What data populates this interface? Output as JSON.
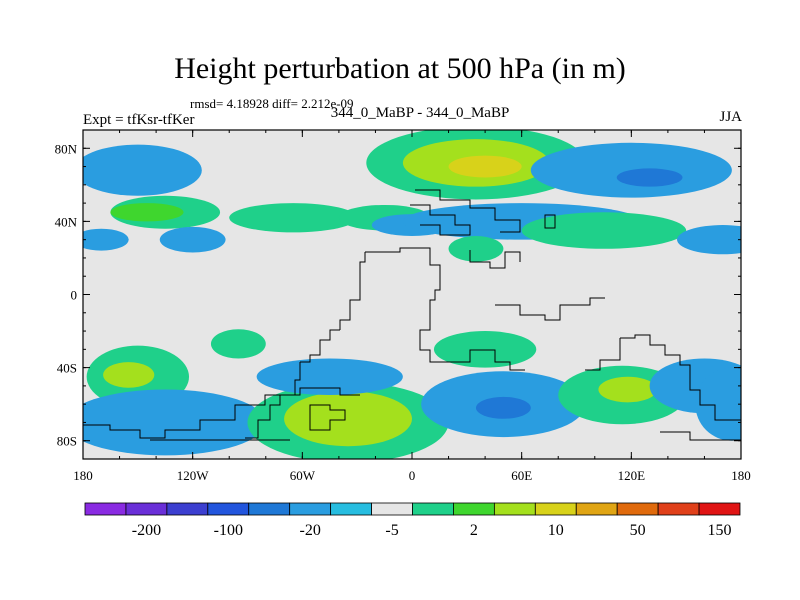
{
  "title": "Height perturbation at 500 hPa (in m)",
  "stats": "rmsd= 4.18928 diff= 2.212e-09",
  "left_label": "Expt = tfKsr-tfKer",
  "center_label": "344_0_MaBP - 344_0_MaBP",
  "right_label": "JJA",
  "map": {
    "lon_range": [
      -180,
      180
    ],
    "lat_range": [
      -90,
      90
    ],
    "lat_ticks": [
      {
        "value": 80,
        "label": "80N"
      },
      {
        "value": 40,
        "label": "40N"
      },
      {
        "value": 0,
        "label": "0"
      },
      {
        "value": -40,
        "label": "40S"
      },
      {
        "value": -80,
        "label": "80S"
      }
    ],
    "lon_ticks": [
      {
        "value": -180,
        "label": "180"
      },
      {
        "value": -120,
        "label": "120W"
      },
      {
        "value": -60,
        "label": "60W"
      },
      {
        "value": 0,
        "label": "0"
      },
      {
        "value": 60,
        "label": "60E"
      },
      {
        "value": 120,
        "label": "120E"
      },
      {
        "value": 180,
        "label": "180"
      }
    ]
  },
  "colorbar": {
    "colors": [
      "#8a2be2",
      "#6a2fd8",
      "#3c3fd0",
      "#2255dd",
      "#1f78d6",
      "#2a9de0",
      "#27bde0",
      "#e6e6e6",
      "#1fd08a",
      "#3fd62e",
      "#a4e01d",
      "#d8d21a",
      "#e0a514",
      "#e06a0c",
      "#e0401a",
      "#e01414"
    ],
    "labels": [
      "-200",
      "-100",
      "-20",
      "-5",
      "2",
      "10",
      "50",
      "150"
    ]
  },
  "field": {
    "blobs": [
      {
        "lon": -150,
        "lat": 68,
        "rx": 35,
        "ry": 14,
        "v": -5
      },
      {
        "lon": -135,
        "lat": 45,
        "rx": 30,
        "ry": 9,
        "v": 5
      },
      {
        "lon": -145,
        "lat": 45,
        "rx": 20,
        "ry": 5,
        "v": 10
      },
      {
        "lon": -120,
        "lat": 30,
        "rx": 18,
        "ry": 7,
        "v": -5
      },
      {
        "lon": -65,
        "lat": 42,
        "rx": 35,
        "ry": 8,
        "v": 5
      },
      {
        "lon": -15,
        "lat": 42,
        "rx": 25,
        "ry": 7,
        "v": 5
      },
      {
        "lon": 0,
        "lat": 38,
        "rx": 22,
        "ry": 6,
        "v": -5
      },
      {
        "lon": 35,
        "lat": 72,
        "rx": 60,
        "ry": 20,
        "v": 5
      },
      {
        "lon": 35,
        "lat": 72,
        "rx": 40,
        "ry": 13,
        "v": 20
      },
      {
        "lon": 40,
        "lat": 70,
        "rx": 20,
        "ry": 6,
        "v": 50
      },
      {
        "lon": 120,
        "lat": 68,
        "rx": 55,
        "ry": 15,
        "v": -5
      },
      {
        "lon": 130,
        "lat": 64,
        "rx": 18,
        "ry": 5,
        "v": -20
      },
      {
        "lon": 60,
        "lat": 40,
        "rx": 65,
        "ry": 10,
        "v": -5
      },
      {
        "lon": 105,
        "lat": 35,
        "rx": 45,
        "ry": 10,
        "v": 5
      },
      {
        "lon": 35,
        "lat": 25,
        "rx": 15,
        "ry": 7,
        "v": 5
      },
      {
        "lon": 170,
        "lat": 30,
        "rx": 25,
        "ry": 8,
        "v": -5
      },
      {
        "lon": -170,
        "lat": 30,
        "rx": 15,
        "ry": 6,
        "v": -5
      },
      {
        "lon": -95,
        "lat": -27,
        "rx": 15,
        "ry": 8,
        "v": 5
      },
      {
        "lon": -150,
        "lat": -45,
        "rx": 28,
        "ry": 17,
        "v": 5
      },
      {
        "lon": -155,
        "lat": -44,
        "rx": 14,
        "ry": 7,
        "v": 20
      },
      {
        "lon": -135,
        "lat": -70,
        "rx": 55,
        "ry": 18,
        "v": -5
      },
      {
        "lon": -35,
        "lat": -70,
        "rx": 55,
        "ry": 22,
        "v": 5
      },
      {
        "lon": -35,
        "lat": -68,
        "rx": 35,
        "ry": 15,
        "v": 20
      },
      {
        "lon": -45,
        "lat": -45,
        "rx": 40,
        "ry": 10,
        "v": -5
      },
      {
        "lon": 40,
        "lat": -30,
        "rx": 28,
        "ry": 10,
        "v": 5
      },
      {
        "lon": 50,
        "lat": -60,
        "rx": 45,
        "ry": 18,
        "v": -5
      },
      {
        "lon": 50,
        "lat": -62,
        "rx": 15,
        "ry": 6,
        "v": -20
      },
      {
        "lon": 115,
        "lat": -55,
        "rx": 35,
        "ry": 16,
        "v": 5
      },
      {
        "lon": 118,
        "lat": -52,
        "rx": 16,
        "ry": 7,
        "v": 20
      },
      {
        "lon": 160,
        "lat": -50,
        "rx": 30,
        "ry": 15,
        "v": -5
      },
      {
        "lon": 175,
        "lat": -60,
        "rx": 20,
        "ry": 20,
        "v": -5
      }
    ]
  }
}
